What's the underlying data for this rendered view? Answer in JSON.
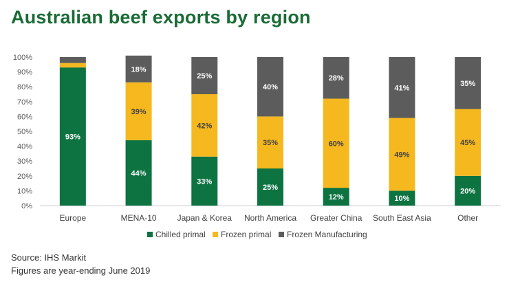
{
  "title": "Australian beef exports by region",
  "footer": {
    "source": "Source: IHS Markit",
    "note": "Figures are year-ending June 2019"
  },
  "chart_data": {
    "type": "bar",
    "stacked": true,
    "categories": [
      "Europe",
      "MENA-10",
      "Japan & Korea",
      "North America",
      "Greater China",
      "South East Asia",
      "Other"
    ],
    "series": [
      {
        "name": "Chilled primal",
        "color": "#0c7341",
        "values": [
          93,
          44,
          33,
          25,
          12,
          10,
          20
        ],
        "labels": [
          "93%",
          "44%",
          "33%",
          "25%",
          "12%",
          "10%",
          "20%"
        ]
      },
      {
        "name": "Frozen primal",
        "color": "#f5b81f",
        "values": [
          3,
          39,
          42,
          35,
          60,
          49,
          45
        ],
        "labels": [
          "",
          "39%",
          "42%",
          "35%",
          "60%",
          "49%",
          "45%"
        ]
      },
      {
        "name": "Frozen Manufacturing",
        "color": "#5c5c5c",
        "values": [
          4,
          18,
          25,
          40,
          28,
          41,
          35
        ],
        "labels": [
          "",
          "18%",
          "25%",
          "40%",
          "28%",
          "41%",
          "35%"
        ]
      }
    ],
    "ylim": [
      0,
      100
    ],
    "yticks": [
      "0%",
      "10%",
      "20%",
      "30%",
      "40%",
      "50%",
      "60%",
      "70%",
      "80%",
      "90%",
      "100%"
    ],
    "legend": "bottom",
    "grid": false
  }
}
